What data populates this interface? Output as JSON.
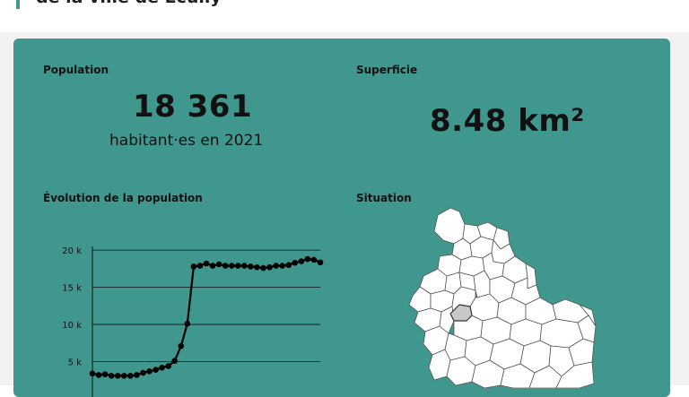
{
  "page": {
    "heading": "de la ville de Écully"
  },
  "population": {
    "label": "Population",
    "value": "18 361",
    "caption": "habitant·es en 2021"
  },
  "surface": {
    "label": "Superficie",
    "value": "8.48 km²"
  },
  "evolution": {
    "label": "Évolution de la population"
  },
  "situation": {
    "label": "Situation"
  },
  "colors": {
    "card": "#3f978e",
    "accent": "#3d9a8f",
    "highlight_commune": "#c8c8c8"
  },
  "chart_data": {
    "type": "line",
    "title": "Évolution de la population",
    "yticks": [
      "20 k",
      "15 k",
      "10 k",
      "5 k"
    ],
    "ytick_values": [
      20000,
      15000,
      10000,
      5000
    ],
    "ylim": [
      0,
      20500
    ],
    "values": [
      3400,
      3200,
      3300,
      3100,
      3100,
      3100,
      3100,
      3200,
      3500,
      3700,
      3900,
      4200,
      4400,
      5100,
      7100,
      10100,
      17800,
      17900,
      18200,
      17900,
      18100,
      17900,
      17900,
      17900,
      17900,
      17800,
      17700,
      17600,
      17700,
      17900,
      17900,
      18000,
      18300,
      18500,
      18800,
      18700,
      18361
    ],
    "grid": true
  }
}
